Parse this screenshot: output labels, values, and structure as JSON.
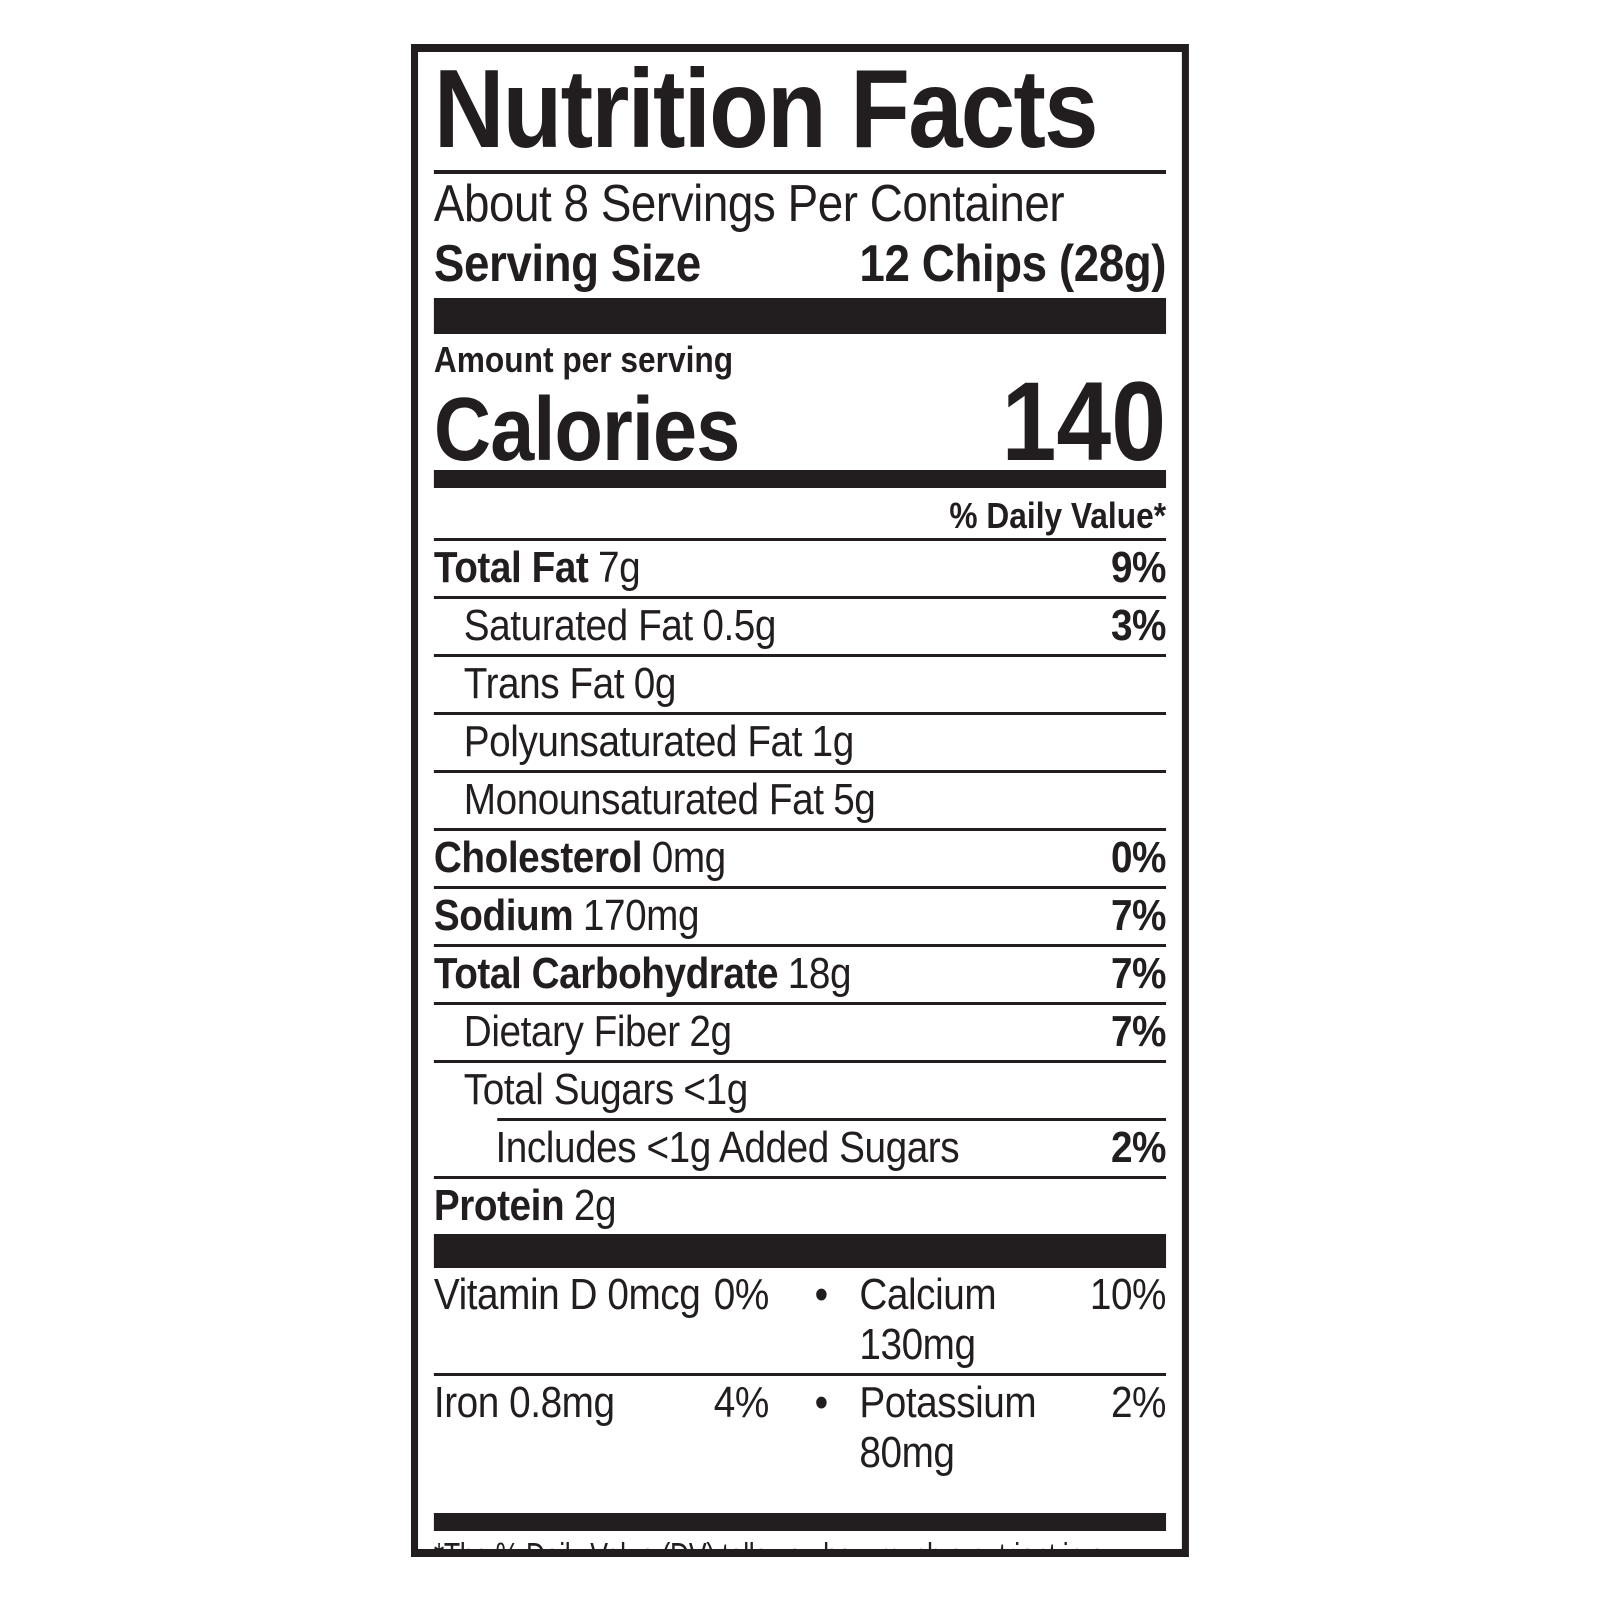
{
  "colors": {
    "ink": "#221e1f",
    "background": "#ffffff"
  },
  "label": {
    "title": "Nutrition Facts",
    "servings_per_container": "About 8 Servings Per Container",
    "serving_size": {
      "label": "Serving Size",
      "value": "12 Chips (28g)"
    },
    "amount_per_serving": "Amount per serving",
    "calories": {
      "label": "Calories",
      "value": "140"
    },
    "daily_value_header": "% Daily Value*",
    "nutrients": [
      {
        "name": "Total Fat",
        "amount": "7g",
        "dv": "9%"
      },
      {
        "name": "Saturated Fat",
        "amount": "0.5g",
        "dv": "3%"
      },
      {
        "name": "Trans Fat",
        "amount": "0g",
        "dv": ""
      },
      {
        "name": "Polyunsaturated Fat",
        "amount": "1g",
        "dv": ""
      },
      {
        "name": "Monounsaturated Fat",
        "amount": "5g",
        "dv": ""
      },
      {
        "name": "Cholesterol",
        "amount": "0mg",
        "dv": "0%"
      },
      {
        "name": "Sodium",
        "amount": "170mg",
        "dv": "7%"
      },
      {
        "name": "Total Carbohydrate",
        "amount": "18g",
        "dv": "7%"
      },
      {
        "name": "Dietary Fiber",
        "amount": "2g",
        "dv": "7%"
      },
      {
        "name": "Total Sugars",
        "amount": "<1g",
        "dv": ""
      },
      {
        "name": "Includes <1g Added Sugars",
        "amount": "",
        "dv": "2%"
      },
      {
        "name": "Protein",
        "amount": "2g",
        "dv": ""
      }
    ],
    "bullet": "•",
    "micronutrients": [
      {
        "left": {
          "name": "Vitamin D 0mcg",
          "dv": "0%"
        },
        "right": {
          "name": "Calcium 130mg",
          "dv": "10%"
        }
      },
      {
        "left": {
          "name": "Iron 0.8mg",
          "dv": "4%"
        },
        "right": {
          "name": "Potassium 80mg",
          "dv": "2%"
        }
      }
    ],
    "footnote": "*The % Daily Value (DV) tells you how much a nutrient in a serving of food contributes to a daily diet. 2,000 calories a day is used for general nutrition advice."
  }
}
